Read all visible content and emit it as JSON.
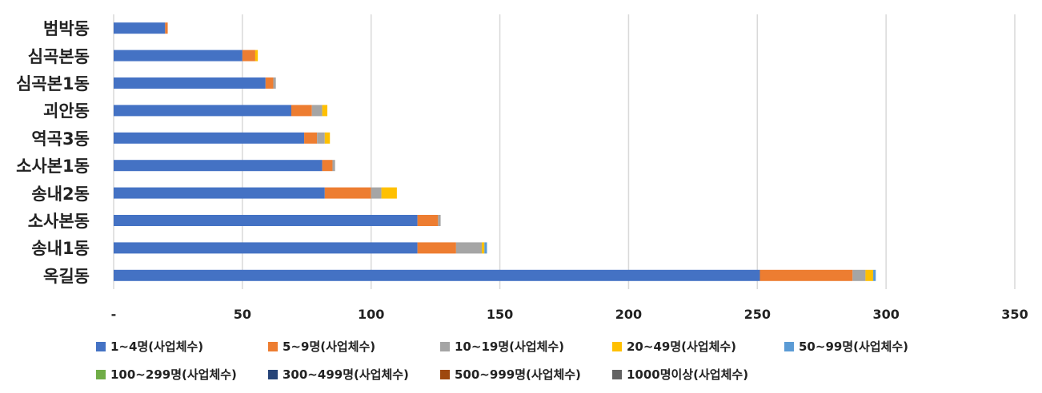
{
  "chart_data": {
    "type": "bar",
    "orientation": "horizontal",
    "stacked": true,
    "title": "",
    "xlabel": "",
    "ylabel": "",
    "xlim": [
      0,
      350
    ],
    "xticks": [
      "-",
      "50",
      "100",
      "150",
      "200",
      "250",
      "300",
      "350"
    ],
    "grid": true,
    "legend_position": "bottom",
    "categories": [
      "범박동",
      "심곡본동",
      "심곡본1동",
      "괴안동",
      "역곡3동",
      "소사본1동",
      "송내2동",
      "소사본동",
      "송내1동",
      "옥길동"
    ],
    "series": [
      {
        "name": "1~4명(사업체수)",
        "color": "#4472C4",
        "values": [
          20,
          50,
          59,
          69,
          74,
          81,
          82,
          118,
          118,
          251
        ]
      },
      {
        "name": "5~9명(사업체수)",
        "color": "#ED7D31",
        "values": [
          1,
          5,
          3,
          8,
          5,
          4,
          18,
          8,
          15,
          36
        ]
      },
      {
        "name": "10~19명(사업체수)",
        "color": "#A5A5A5",
        "values": [
          0,
          0,
          1,
          4,
          3,
          1,
          4,
          1,
          10,
          5
        ]
      },
      {
        "name": "20~49명(사업체수)",
        "color": "#FFC000",
        "values": [
          0,
          1,
          0,
          2,
          2,
          0,
          6,
          0,
          1,
          3
        ]
      },
      {
        "name": "50~99명(사업체수)",
        "color": "#5B9BD5",
        "values": [
          0,
          0,
          0,
          0,
          0,
          0,
          0,
          0,
          1,
          1
        ]
      },
      {
        "name": "100~299명(사업체수)",
        "color": "#70AD47",
        "values": [
          0,
          0,
          0,
          0,
          0,
          0,
          0,
          0,
          0,
          0
        ]
      },
      {
        "name": "300~499명(사업체수)",
        "color": "#264478",
        "values": [
          0,
          0,
          0,
          0,
          0,
          0,
          0,
          0,
          0,
          0
        ]
      },
      {
        "name": "500~999명(사업체수)",
        "color": "#9E480E",
        "values": [
          0,
          0,
          0,
          0,
          0,
          0,
          0,
          0,
          0,
          0
        ]
      },
      {
        "name": "1000명이상(사업체수)",
        "color": "#636363",
        "values": [
          0,
          0,
          0,
          0,
          0,
          0,
          0,
          0,
          0,
          0
        ]
      }
    ]
  }
}
